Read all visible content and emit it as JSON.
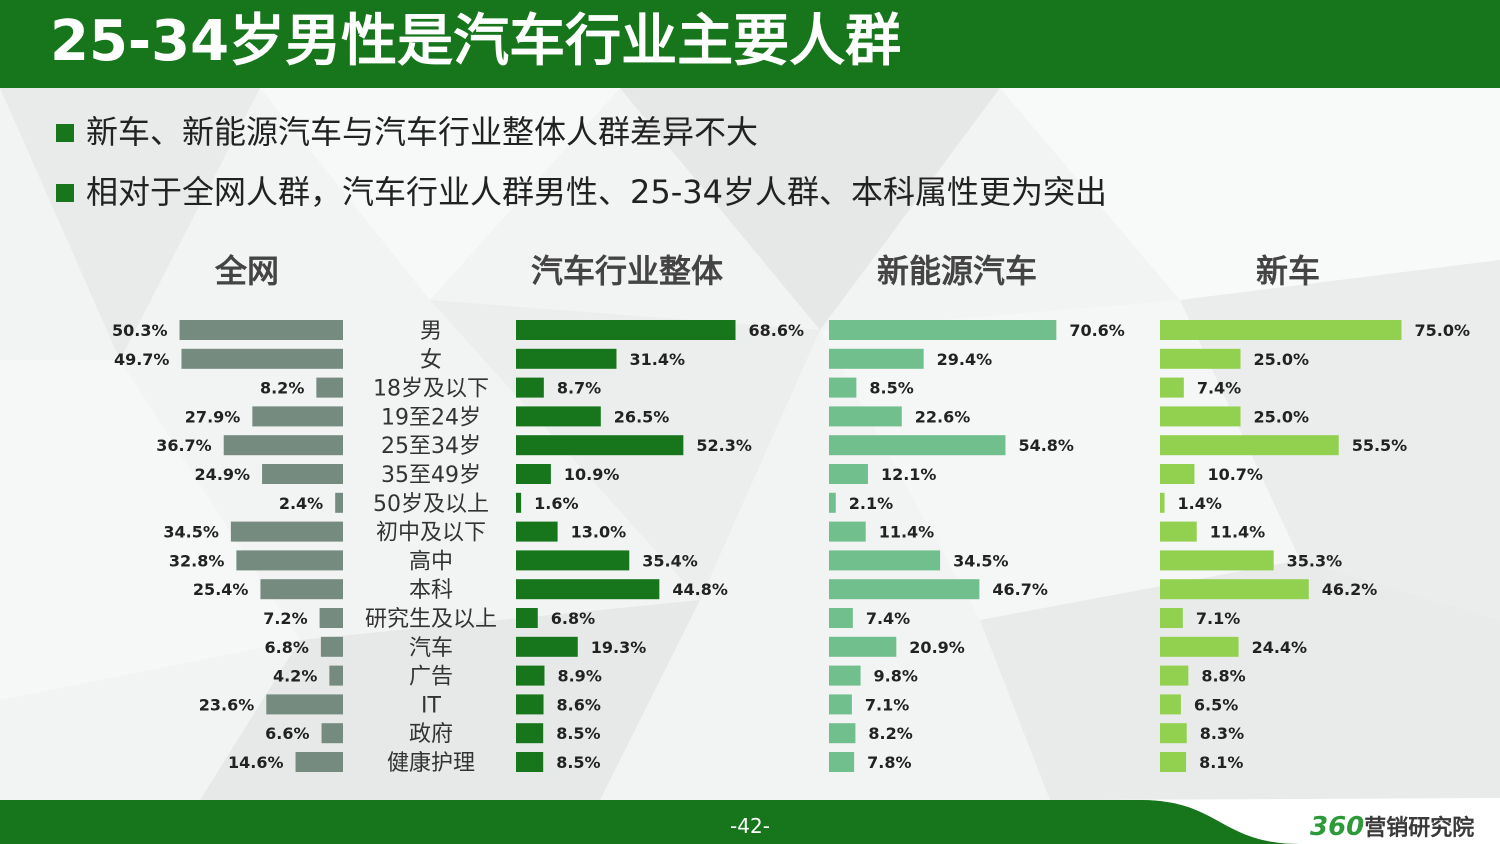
{
  "header": {
    "title": "25-34岁男性是汽车行业主要人群"
  },
  "bullets": [
    "新车、新能源汽车与汽车行业整体人群差异不大",
    "相对于全网人群，汽车行业人群男性、25-34岁人群、本科属性更为突出"
  ],
  "footer": {
    "page": "-42-",
    "brand_num": "360",
    "brand_text": "营销研究院"
  },
  "colors": {
    "primary_green": "#17761c",
    "gray_bar": "#768b80",
    "dark_green_bar": "#17761c",
    "mint_bar": "#72bf8e",
    "lime_bar": "#92d050"
  },
  "chart_data": {
    "type": "bar",
    "orientation": "horizontal",
    "categories": [
      "男",
      "女",
      "18岁及以下",
      "19至24岁",
      "25至34岁",
      "35至49岁",
      "50岁及以上",
      "初中及以下",
      "高中",
      "本科",
      "研究生及以上",
      "汽车",
      "广告",
      "IT",
      "政府",
      "健康护理"
    ],
    "unit": "%",
    "series": [
      {
        "name": "全网",
        "color": "#768b80",
        "values": [
          50.3,
          49.7,
          8.2,
          27.9,
          36.7,
          24.9,
          2.4,
          34.5,
          32.8,
          25.4,
          7.2,
          6.8,
          4.2,
          23.6,
          6.6,
          14.6
        ]
      },
      {
        "name": "汽车行业整体",
        "color": "#17761c",
        "values": [
          68.6,
          31.4,
          8.7,
          26.5,
          52.3,
          10.9,
          1.6,
          13.0,
          35.4,
          44.8,
          6.8,
          19.3,
          8.9,
          8.6,
          8.5,
          8.5
        ]
      },
      {
        "name": "新能源汽车",
        "color": "#72bf8e",
        "values": [
          70.6,
          29.4,
          8.5,
          22.6,
          54.8,
          12.1,
          2.1,
          11.4,
          34.5,
          46.7,
          7.4,
          20.9,
          9.8,
          7.1,
          8.2,
          7.8
        ]
      },
      {
        "name": "新车",
        "color": "#92d050",
        "values": [
          75.0,
          25.0,
          7.4,
          25.0,
          55.5,
          10.7,
          1.4,
          11.4,
          35.3,
          46.2,
          7.1,
          24.4,
          8.8,
          6.5,
          8.3,
          8.1
        ]
      }
    ]
  }
}
